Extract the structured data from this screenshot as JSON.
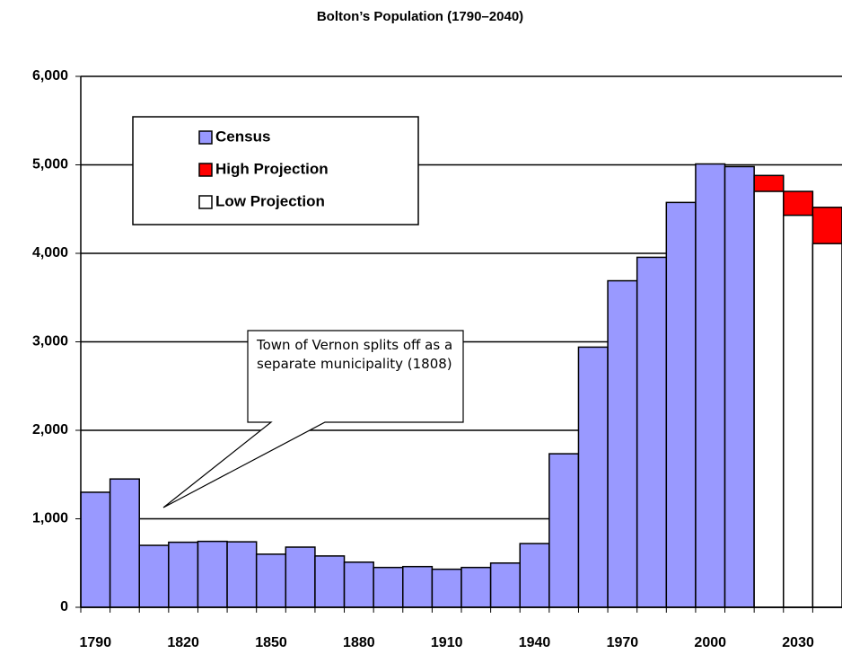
{
  "chart_data": {
    "type": "bar",
    "title": "Bolton’s Population (1790–2040)",
    "categories": [
      1790,
      null,
      null,
      1820,
      null,
      null,
      1850,
      null,
      null,
      1880,
      null,
      null,
      1910,
      null,
      null,
      1940,
      null,
      null,
      1970,
      null,
      null,
      2000,
      null,
      null,
      2030,
      null
    ],
    "series": [
      {
        "name": "Census",
        "color": "#9999ff",
        "values": [
          1300,
          1450,
          700,
          735,
          745,
          740,
          600,
          680,
          580,
          510,
          450,
          460,
          430,
          450,
          500,
          720,
          1735,
          2940,
          3690,
          3955,
          4575,
          5010,
          4980,
          null,
          null,
          null
        ]
      },
      {
        "name": "High Projection",
        "color": "#ff0000",
        "values": [
          null,
          null,
          null,
          null,
          null,
          null,
          null,
          null,
          null,
          null,
          null,
          null,
          null,
          null,
          null,
          null,
          null,
          null,
          null,
          null,
          null,
          null,
          null,
          4880,
          4700,
          4520
        ]
      },
      {
        "name": "Low Projection",
        "color": "#ffffff",
        "values": [
          null,
          null,
          null,
          null,
          null,
          null,
          null,
          null,
          null,
          null,
          null,
          null,
          null,
          null,
          null,
          null,
          null,
          null,
          null,
          null,
          null,
          null,
          null,
          4700,
          4430,
          4110
        ]
      }
    ],
    "ylim": [
      0,
      6000
    ],
    "yticks": [
      0,
      {
        "value": 1000,
        "label": "1,000"
      },
      {
        "value": 2000,
        "label": "2,000"
      },
      {
        "value": 3000,
        "label": "3,000"
      },
      {
        "value": 4000,
        "label": "4,000"
      },
      {
        "value": 5000,
        "label": "5,000"
      },
      {
        "value": 6000,
        "label": "6,000"
      }
    ],
    "grid": true,
    "annotation": "Town of Vernon splits off as a separate municipality (1808)"
  }
}
